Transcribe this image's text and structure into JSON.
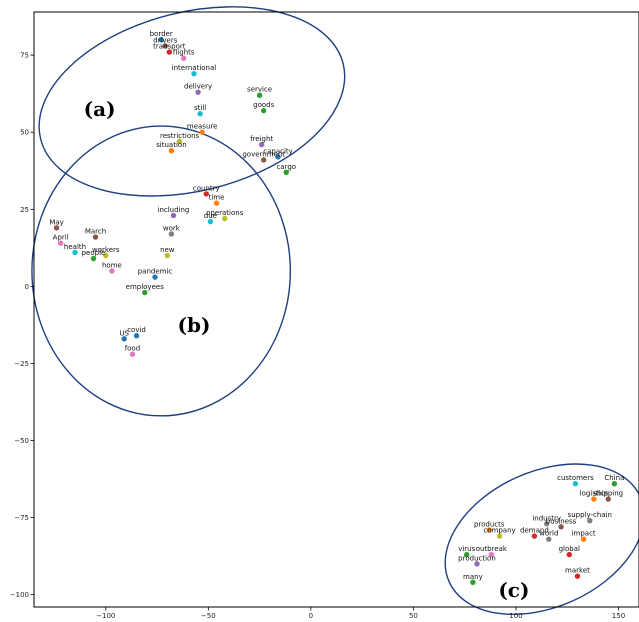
{
  "chart_data": {
    "type": "scatter",
    "title": "",
    "xlabel": "",
    "ylabel": "",
    "xlim": [
      -135,
      160
    ],
    "ylim": [
      -104,
      89
    ],
    "xticks": [
      -100,
      -50,
      0,
      50,
      100,
      150
    ],
    "yticks": [
      -100,
      -75,
      -50,
      -25,
      0,
      25,
      50,
      75
    ],
    "grid": false,
    "legend": "none",
    "points": [
      {
        "label": "border",
        "x": -73,
        "y": 80,
        "color": "#1f77b4"
      },
      {
        "label": "drivers",
        "x": -71,
        "y": 78,
        "color": "#8c564b"
      },
      {
        "label": "transport",
        "x": -69,
        "y": 76,
        "color": "#d62728"
      },
      {
        "label": "flights",
        "x": -62,
        "y": 74,
        "color": "#e377c2"
      },
      {
        "label": "international",
        "x": -57,
        "y": 69,
        "color": "#17becf"
      },
      {
        "label": "delivery",
        "x": -55,
        "y": 63,
        "color": "#9467bd"
      },
      {
        "label": "service",
        "x": -25,
        "y": 62,
        "color": "#2ca02c"
      },
      {
        "label": "goods",
        "x": -23,
        "y": 57,
        "color": "#2ca02c"
      },
      {
        "label": "still",
        "x": -54,
        "y": 56,
        "color": "#17becf"
      },
      {
        "label": "measure",
        "x": -53,
        "y": 50,
        "color": "#ff7f0e"
      },
      {
        "label": "restrictions",
        "x": -64,
        "y": 47,
        "color": "#bcbd22"
      },
      {
        "label": "situation",
        "x": -68,
        "y": 44,
        "color": "#ff7f0e"
      },
      {
        "label": "freight",
        "x": -24,
        "y": 46,
        "color": "#9467bd"
      },
      {
        "label": "capacity",
        "x": -16,
        "y": 42,
        "color": "#1f77b4"
      },
      {
        "label": "government",
        "x": -23,
        "y": 41,
        "color": "#8c564b"
      },
      {
        "label": "cargo",
        "x": -12,
        "y": 37,
        "color": "#2ca02c"
      },
      {
        "label": "country",
        "x": -51,
        "y": 30,
        "color": "#d62728"
      },
      {
        "label": "time",
        "x": -46,
        "y": 27,
        "color": "#ff7f0e"
      },
      {
        "label": "including",
        "x": -67,
        "y": 23,
        "color": "#9467bd"
      },
      {
        "label": "operations",
        "x": -42,
        "y": 22,
        "color": "#bcbd22"
      },
      {
        "label": "due",
        "x": -49,
        "y": 21,
        "color": "#17becf"
      },
      {
        "label": "May",
        "x": -124,
        "y": 19,
        "color": "#8c564b"
      },
      {
        "label": "work",
        "x": -68,
        "y": 17,
        "color": "#7f7f7f"
      },
      {
        "label": "March",
        "x": -105,
        "y": 16,
        "color": "#8c564b"
      },
      {
        "label": "April",
        "x": -122,
        "y": 14,
        "color": "#e377c2"
      },
      {
        "label": "health",
        "x": -115,
        "y": 11,
        "color": "#17becf"
      },
      {
        "label": "workers",
        "x": -100,
        "y": 10,
        "color": "#bcbd22"
      },
      {
        "label": "people",
        "x": -106,
        "y": 9,
        "color": "#2ca02c"
      },
      {
        "label": "new",
        "x": -70,
        "y": 10,
        "color": "#bcbd22"
      },
      {
        "label": "home",
        "x": -97,
        "y": 5,
        "color": "#e377c2"
      },
      {
        "label": "pandemic",
        "x": -76,
        "y": 3,
        "color": "#1f77b4"
      },
      {
        "label": "employees",
        "x": -81,
        "y": -2,
        "color": "#2ca02c"
      },
      {
        "label": "US",
        "x": -91,
        "y": -17,
        "color": "#1f77b4"
      },
      {
        "label": "covid",
        "x": -85,
        "y": -16,
        "color": "#1f77b4"
      },
      {
        "label": "food",
        "x": -87,
        "y": -22,
        "color": "#e377c2"
      },
      {
        "label": "customers",
        "x": 129,
        "y": -64,
        "color": "#17becf"
      },
      {
        "label": "China",
        "x": 148,
        "y": -64,
        "color": "#2ca02c"
      },
      {
        "label": "logistics",
        "x": 138,
        "y": -69,
        "color": "#ff7f0e"
      },
      {
        "label": "shipping",
        "x": 145,
        "y": -69,
        "color": "#8c564b"
      },
      {
        "label": "industry",
        "x": 115,
        "y": -77,
        "color": "#7f7f7f"
      },
      {
        "label": "business",
        "x": 122,
        "y": -78,
        "color": "#8c564b"
      },
      {
        "label": "supply-chain",
        "x": 136,
        "y": -76,
        "color": "#7f7f7f"
      },
      {
        "label": "products",
        "x": 87,
        "y": -79,
        "color": "#ff7f0e"
      },
      {
        "label": "company",
        "x": 92,
        "y": -81,
        "color": "#bcbd22"
      },
      {
        "label": "demand",
        "x": 109,
        "y": -81,
        "color": "#d62728"
      },
      {
        "label": "world",
        "x": 116,
        "y": -82,
        "color": "#7f7f7f"
      },
      {
        "label": "impact",
        "x": 133,
        "y": -82,
        "color": "#ff7f0e"
      },
      {
        "label": "virus",
        "x": 76,
        "y": -87,
        "color": "#2ca02c"
      },
      {
        "label": "outbreak",
        "x": 88,
        "y": -87,
        "color": "#e377c2"
      },
      {
        "label": "global",
        "x": 126,
        "y": -87,
        "color": "#d62728"
      },
      {
        "label": "production",
        "x": 81,
        "y": -90,
        "color": "#9467bd"
      },
      {
        "label": "market",
        "x": 130,
        "y": -94,
        "color": "#d62728"
      },
      {
        "label": "many",
        "x": 79,
        "y": -96,
        "color": "#2ca02c"
      }
    ],
    "annotations": [
      {
        "text": "(a)",
        "x": -103,
        "y": 57
      },
      {
        "text": "(b)",
        "x": -57,
        "y": -13
      },
      {
        "text": "(c)",
        "x": 99,
        "y": -99
      }
    ],
    "ellipses": [
      {
        "cx": -58,
        "cy": 60,
        "rx": 76,
        "ry": 29,
        "angle": 14,
        "color": "#1f3f7f"
      },
      {
        "cx": -73,
        "cy": 5,
        "rx": 63,
        "ry": 47,
        "angle": 0,
        "color": "#1f3f7f"
      },
      {
        "cx": 114,
        "cy": -82,
        "rx": 51,
        "ry": 22,
        "angle": 24,
        "color": "#1f3f7f"
      }
    ]
  }
}
